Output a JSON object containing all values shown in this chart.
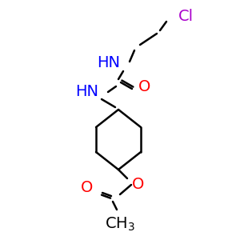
{
  "background_color": "#ffffff",
  "bond_color": "#000000",
  "N_color": "#0000ff",
  "O_color": "#ff0000",
  "Cl_color": "#aa00cc",
  "font_size": 14,
  "lw": 1.8,
  "figsize": [
    3.0,
    3.0
  ],
  "dpi": 100,
  "xlim": [
    0,
    300
  ],
  "ylim": [
    0,
    300
  ]
}
